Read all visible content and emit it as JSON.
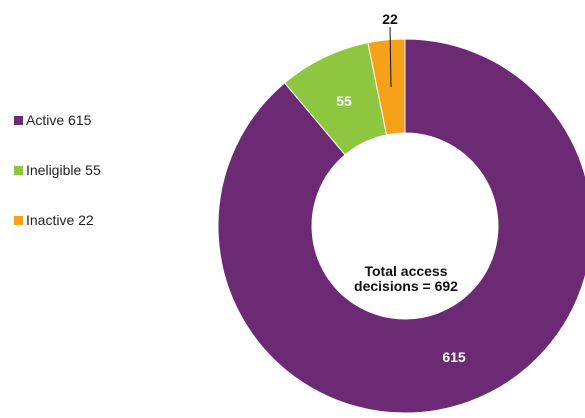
{
  "chart_data": {
    "type": "pie",
    "variant": "donut",
    "slices": [
      {
        "label": "Active",
        "value": 615,
        "color": "#6b2a73"
      },
      {
        "label": "Ineligible",
        "value": 55,
        "color": "#8dc63f"
      },
      {
        "label": "Inactive",
        "value": 22,
        "color": "#f7a11a"
      }
    ],
    "legend": {
      "placement": "left",
      "items": [
        "Active 615",
        "Ineligible 55",
        "Inactive 22"
      ]
    },
    "data_labels": [
      "615",
      "55",
      "22"
    ],
    "center_text": [
      "Total access",
      "decisions = 692"
    ]
  }
}
